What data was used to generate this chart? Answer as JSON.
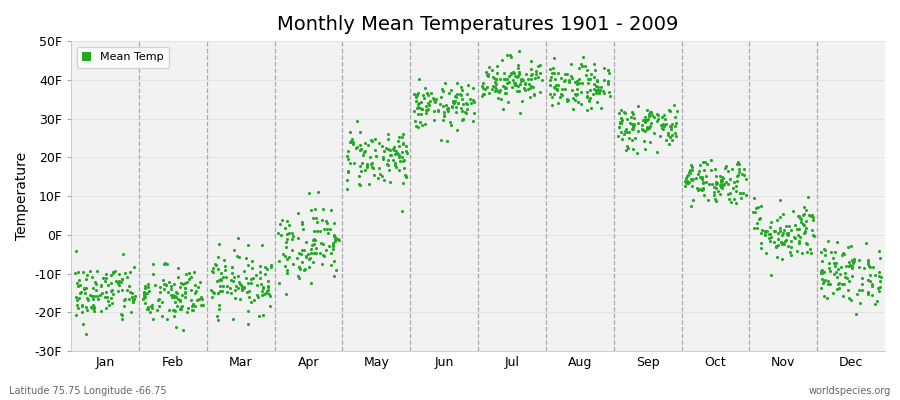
{
  "title": "Monthly Mean Temperatures 1901 - 2009",
  "ylabel": "Temperature",
  "xlabel_labels": [
    "Jan",
    "Feb",
    "Mar",
    "Apr",
    "May",
    "Jun",
    "Jul",
    "Aug",
    "Sep",
    "Oct",
    "Nov",
    "Dec"
  ],
  "yticks": [
    -30,
    -20,
    -10,
    0,
    10,
    20,
    30,
    40,
    50
  ],
  "ylim": [
    -30,
    50
  ],
  "xlim": [
    0,
    12
  ],
  "dot_color": "#22aa22",
  "dot_size": 5,
  "legend_label": "Mean Temp",
  "bottom_left_text": "Latitude 75.75 Longitude -66.75",
  "bottom_right_text": "worldspecies.org",
  "background_color": "#ffffff",
  "plot_bg_color": "#f2f2f2",
  "monthly_means_F": [
    -15,
    -16,
    -12,
    -2,
    20,
    33,
    40,
    38,
    28,
    14,
    1,
    -10
  ],
  "monthly_std_F": [
    4,
    4,
    4,
    5,
    4,
    3,
    3,
    3,
    3,
    3,
    4,
    4
  ],
  "n_points": 109,
  "seed": 42
}
